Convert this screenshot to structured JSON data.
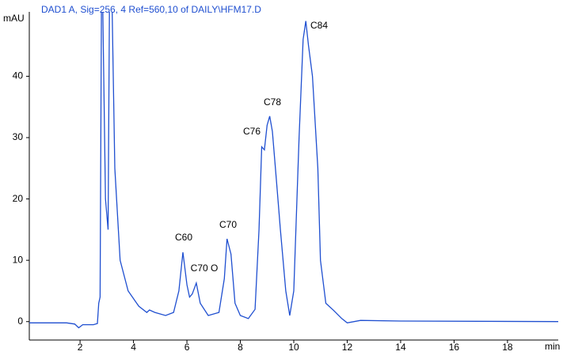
{
  "chart_data": {
    "type": "line",
    "title": "DAD1 A, Sig=256, 4  Ref=560,10 of DAILY\\HFM17.D",
    "ylabel": "mAU",
    "xlabel": "min",
    "x": [
      0.1,
      1.5,
      1.8,
      1.95,
      2.1,
      2.5,
      2.65,
      2.7,
      2.75,
      2.8,
      2.85,
      2.95,
      3.05,
      3.1,
      3.2,
      3.3,
      3.5,
      3.8,
      4.2,
      4.5,
      4.6,
      4.8,
      5.2,
      5.5,
      5.7,
      5.85,
      6.0,
      6.1,
      6.2,
      6.35,
      6.5,
      6.8,
      7.2,
      7.4,
      7.5,
      7.65,
      7.8,
      8.0,
      8.3,
      8.55,
      8.7,
      8.8,
      8.9,
      9.0,
      9.1,
      9.2,
      9.35,
      9.5,
      9.7,
      9.85,
      10.0,
      10.2,
      10.35,
      10.45,
      10.55,
      10.7,
      10.9,
      11.0,
      11.2,
      11.5,
      11.8,
      12.0,
      12.5,
      14,
      19.9
    ],
    "series": [
      {
        "name": "DAD1 A",
        "color": "#1f4fd0",
        "values": [
          -0.2,
          -0.2,
          -0.4,
          -1.0,
          -0.5,
          -0.5,
          -0.3,
          3,
          4,
          51,
          51,
          20,
          15,
          51,
          51,
          25,
          10,
          5,
          2.5,
          1.5,
          1.9,
          1.5,
          1,
          1.5,
          5,
          11.3,
          6,
          4,
          4.5,
          6.3,
          3,
          1,
          1.5,
          7,
          13.5,
          11,
          3,
          1,
          0.5,
          2,
          15,
          28.5,
          28,
          32,
          33.5,
          31,
          23,
          15,
          5,
          1,
          5,
          30,
          46,
          49,
          45,
          40,
          25,
          10,
          3,
          1.8,
          0.5,
          -0.2,
          0.2,
          0.1,
          0
        ]
      }
    ],
    "annotations": [
      "C60",
      "C70 O",
      "C70",
      "C76",
      "C78",
      "C84"
    ],
    "xlim": [
      0.1,
      19.9
    ],
    "ylim": [
      -3,
      50.5
    ],
    "xticks": [
      2,
      4,
      6,
      8,
      10,
      12,
      14,
      16,
      18
    ],
    "yticks": [
      0,
      10,
      20,
      30,
      40
    ],
    "grid": false
  }
}
